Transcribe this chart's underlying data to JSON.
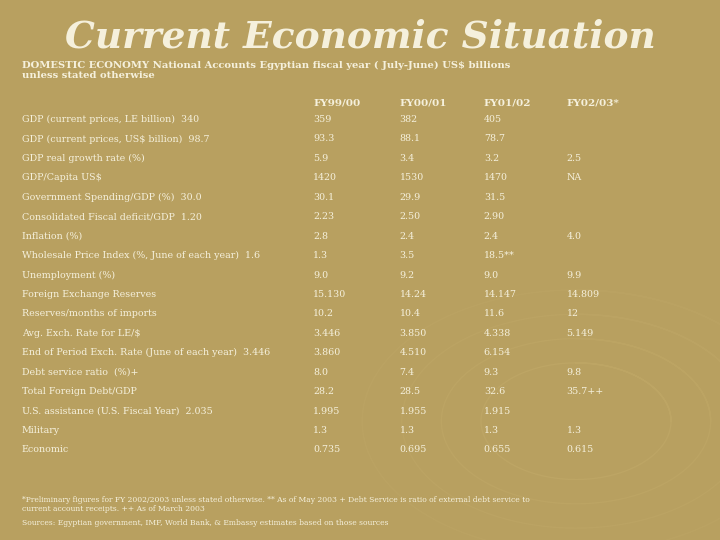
{
  "title": "Current Economic Situation",
  "background_color": "#b8a060",
  "title_color": "#f5f0dc",
  "text_color": "#f5f0dc",
  "subtitle": "DOMESTIC ECONOMY National Accounts Egyptian fiscal year ( July-June) US$ billions\nunless stated otherwise",
  "col_headers": [
    "FY99/00",
    "FY00/01",
    "FY01/02",
    "FY02/03*"
  ],
  "rows": [
    [
      "GDP (current prices, LE billion)  340",
      "359",
      "382",
      "405",
      ""
    ],
    [
      "GDP (current prices, US$ billion)  98.7",
      "93.3",
      "88.1",
      "78.7",
      ""
    ],
    [
      "GDP real growth rate (%)",
      "5.9",
      "3.4",
      "3.2",
      "2.5"
    ],
    [
      "GDP/Capita US$",
      "1420",
      "1530",
      "1470",
      "NA"
    ],
    [
      "Government Spending/GDP (%)  30.0",
      "30.1",
      "29.9",
      "31.5",
      ""
    ],
    [
      "Consolidated Fiscal deficit/GDP  1.20",
      "2.23",
      "2.50",
      "2.90",
      ""
    ],
    [
      "Inflation (%)",
      "2.8",
      "2.4",
      "2.4",
      "4.0"
    ],
    [
      "Wholesale Price Index (%, June of each year)  1.6",
      "1.3",
      "3.5",
      "18.5**",
      ""
    ],
    [
      "Unemployment (%)",
      "9.0",
      "9.2",
      "9.0",
      "9.9"
    ],
    [
      "Foreign Exchange Reserves",
      "15.130",
      "14.24",
      "14.147",
      "14.809"
    ],
    [
      "Reserves/months of imports",
      "10.2",
      "10.4",
      "11.6",
      "12"
    ],
    [
      "Avg. Exch. Rate for LE/$",
      "3.446",
      "3.850",
      "4.338",
      "5.149"
    ],
    [
      "End of Period Exch. Rate (June of each year)  3.446",
      "3.860",
      "4.510",
      "6.154",
      ""
    ],
    [
      "Debt service ratio  (%)+",
      "8.0",
      "7.4",
      "9.3",
      "9.8"
    ],
    [
      "Total Foreign Debt/GDP",
      "28.2",
      "28.5",
      "32.6",
      "35.7++"
    ],
    [
      "U.S. assistance (U.S. Fiscal Year)  2.035",
      "1.995",
      "1.955",
      "1.915",
      ""
    ],
    [
      "Military",
      "1.3",
      "1.3",
      "1.3",
      "1.3"
    ],
    [
      "Economic",
      "0.735",
      "0.695",
      "0.655",
      "0.615"
    ]
  ],
  "footnote1": "*Preliminary figures for FY 2002/2003 unless stated otherwise. ** As of May 2003 + Debt Service is ratio of external debt service to\ncurrent account receipts. ++ As of March 2003",
  "footnote2": "Sources: Egyptian government, IMF, World Bank, & Embassy estimates based on those sources"
}
